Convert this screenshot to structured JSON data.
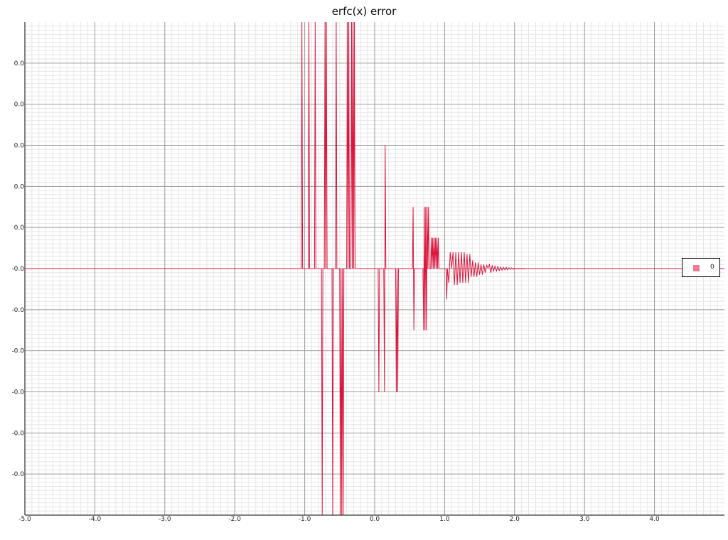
{
  "chart_data": {
    "type": "line",
    "title": "erfc(x) error",
    "xlabel": "",
    "ylabel": "",
    "xlim": [
      -5.0,
      5.0
    ],
    "ylim": [
      -6.0,
      6.0
    ],
    "grid": true,
    "legend_position": "right",
    "x_ticks": [
      -5.0,
      -4.0,
      -3.0,
      -2.0,
      -1.0,
      0.0,
      1.0,
      2.0,
      3.0,
      4.0
    ],
    "x_tick_labels": [
      "-5.0",
      "-4.0",
      "-3.0",
      "-2.0",
      "-1.0",
      "0.0",
      "1.0",
      "2.0",
      "3.0",
      "4.0"
    ],
    "y_ticks": [
      5,
      4,
      3,
      2,
      1,
      0,
      -1,
      -2,
      -3,
      -4,
      -5
    ],
    "y_tick_labels": [
      "0.0",
      "0.0",
      "0.0",
      "0.0",
      "0.0",
      "-0.0",
      "-0.0",
      "-0.0",
      "-0.0",
      "-0.0",
      "-0.0"
    ],
    "series": [
      {
        "name": "0",
        "color": "#dc143c",
        "x": [
          -5.0,
          -1.05,
          -1.04,
          -1.03,
          -0.95,
          -0.94,
          -0.93,
          -0.86,
          -0.85,
          -0.84,
          -0.76,
          -0.75,
          -0.74,
          -0.72,
          -0.71,
          -0.7,
          -0.69,
          -0.68,
          -0.61,
          -0.6,
          -0.59,
          -0.56,
          -0.55,
          -0.54,
          -0.5,
          -0.49,
          -0.48,
          -0.47,
          -0.46,
          -0.45,
          -0.44,
          -0.4,
          -0.39,
          -0.38,
          -0.37,
          -0.36,
          -0.34,
          -0.33,
          -0.32,
          -0.31,
          -0.3,
          -0.29,
          -0.28,
          -0.27,
          0.05,
          0.06,
          0.07,
          0.13,
          0.14,
          0.15,
          0.16,
          0.17,
          0.3,
          0.31,
          0.32,
          0.33,
          0.34,
          0.54,
          0.55,
          0.56,
          0.57,
          0.58,
          0.69,
          0.7,
          0.71,
          0.72,
          0.73,
          0.74,
          0.75,
          0.76,
          0.77,
          0.78,
          0.8,
          0.81,
          0.82,
          0.83,
          0.84,
          0.85,
          0.86,
          0.87,
          0.88,
          0.89,
          0.9,
          0.91,
          0.92,
          1.02,
          1.03,
          1.04,
          1.06,
          1.08,
          1.1,
          1.12,
          1.14,
          1.16,
          1.18,
          1.2,
          1.22,
          1.24,
          1.26,
          1.28,
          1.3,
          1.32,
          1.34,
          1.36,
          1.38,
          1.4,
          1.42,
          1.44,
          1.46,
          1.48,
          1.5,
          1.52,
          1.54,
          1.56,
          1.58,
          1.6,
          1.62,
          1.64,
          1.66,
          1.68,
          1.7,
          1.72,
          1.74,
          1.76,
          1.78,
          1.8,
          1.82,
          1.84,
          1.86,
          1.88,
          1.9,
          1.92,
          1.94,
          1.96,
          1.98,
          2.0,
          2.02,
          2.04,
          2.06,
          2.08,
          2.1,
          2.12,
          2.14,
          2.16,
          2.2,
          5.0
        ],
        "y": [
          0,
          0,
          6,
          0,
          0,
          6,
          0,
          0,
          6,
          0,
          0,
          -6,
          0,
          0,
          6,
          0,
          6,
          0,
          0,
          -6,
          0,
          0,
          6,
          0,
          0,
          -6,
          0,
          -6,
          0,
          -6,
          0,
          0,
          6,
          0,
          6,
          0,
          0,
          6,
          0,
          6,
          0,
          6,
          0,
          0,
          0,
          -3,
          0,
          0,
          -3,
          3,
          0,
          0,
          0,
          -3,
          0,
          -3,
          0,
          0,
          1.5,
          -1.5,
          0,
          0,
          0,
          -1.5,
          1.5,
          -1.5,
          1.5,
          -1.5,
          1.5,
          0,
          1.5,
          0,
          0,
          0.75,
          0,
          0.75,
          0,
          0.75,
          0,
          0.75,
          0,
          0.75,
          0,
          0.75,
          0,
          0,
          -0.75,
          0,
          -0.35,
          0.4,
          0,
          0.4,
          -0.4,
          0.4,
          -0.4,
          0.4,
          -0.35,
          0.4,
          -0.35,
          0.4,
          -0.35,
          0.35,
          -0.35,
          0.35,
          -0.2,
          0.2,
          -0.2,
          0.15,
          -0.2,
          0.15,
          -0.15,
          0.1,
          -0.15,
          0.1,
          -0.1,
          0.08,
          0.02,
          0.1,
          -0.1,
          0.08,
          -0.06,
          0.06,
          -0.06,
          0.05,
          -0.05,
          0.04,
          -0.04,
          0.03,
          -0.03,
          0.03,
          -0.03,
          0.02,
          -0.02,
          0.02,
          -0.02,
          0.01,
          -0.01,
          0.01,
          -0.01,
          0.01,
          -0.01,
          0.01,
          -0.01,
          0.0,
          0.0,
          0.0
        ]
      }
    ]
  }
}
